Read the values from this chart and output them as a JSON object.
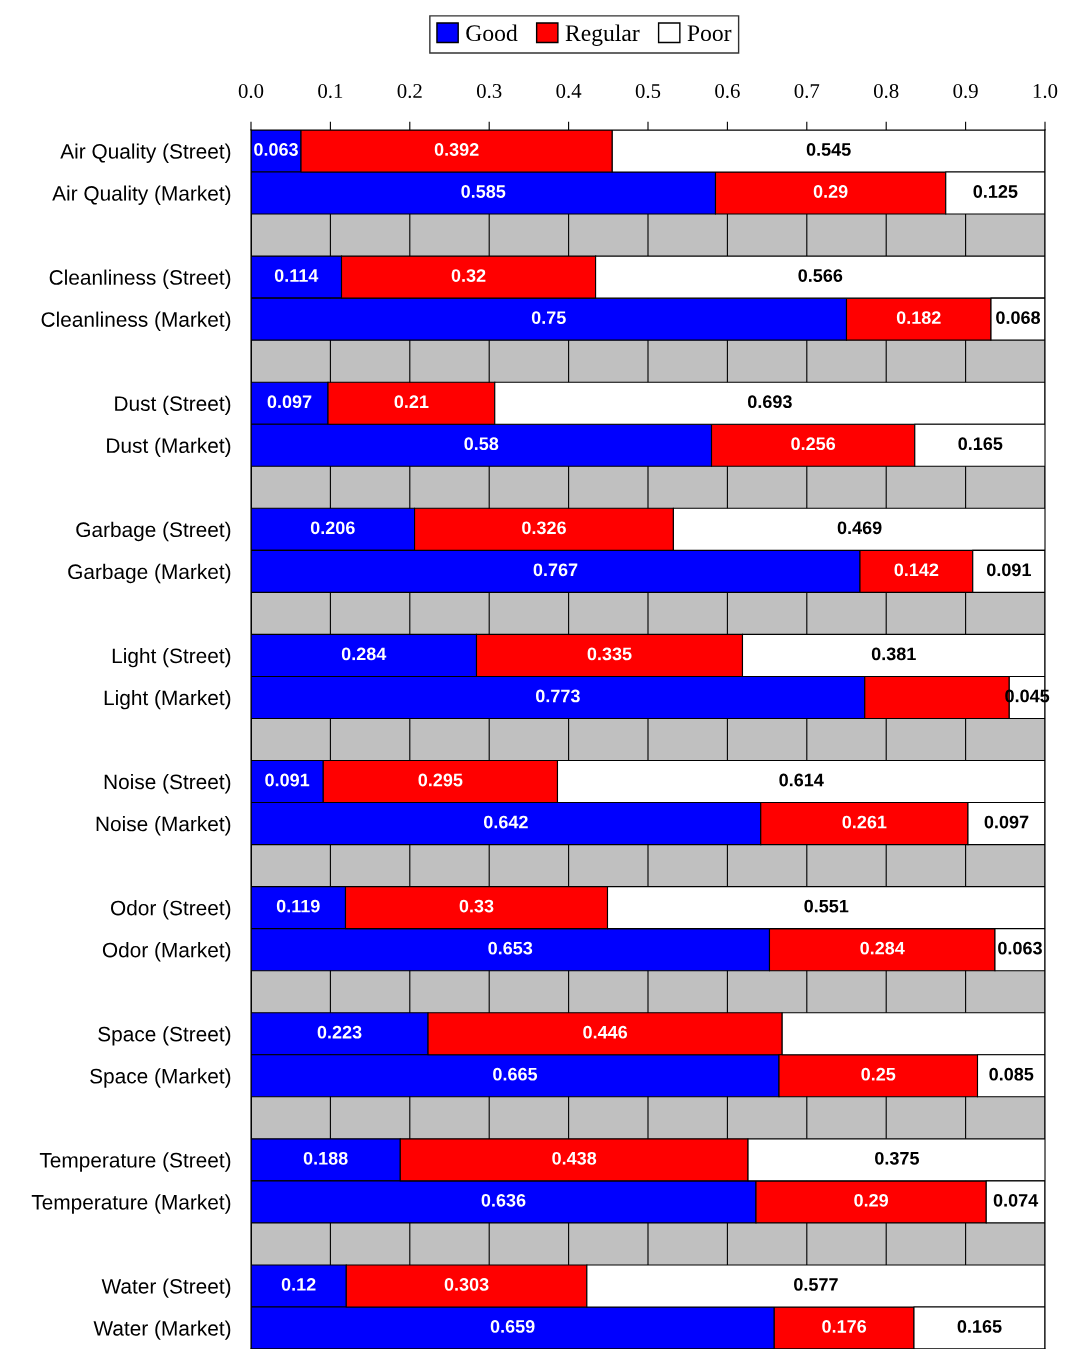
{
  "chart_data": {
    "type": "bar",
    "orientation": "horizontal",
    "stacked": true,
    "legend": "top",
    "grid": "x",
    "categories": [
      "Air Quality (Street)",
      "Air Quality (Market)",
      null,
      "Cleanliness (Street)",
      "Cleanliness (Market)",
      null,
      "Dust (Street)",
      "Dust (Market)",
      null,
      "Garbage (Street)",
      "Garbage (Market)",
      null,
      "Light (Street)",
      "Light (Market)",
      null,
      "Noise (Street)",
      "Noise (Market)",
      null,
      "Odor (Street)",
      "Odor (Market)",
      null,
      "Space (Street)",
      "Space (Market)",
      null,
      "Temperature (Street)",
      "Temperature (Market)",
      null,
      "Water (Street)",
      "Water (Market)"
    ],
    "xlim": [
      0,
      1.0
    ],
    "xticks": [
      {
        "value": 0,
        "label": "0.0"
      },
      {
        "value": 0.1,
        "label": "0.1"
      },
      {
        "value": 0.2,
        "label": "0.2"
      },
      {
        "value": 0.3,
        "label": "0.3"
      },
      {
        "value": 0.4,
        "label": "0.4"
      },
      {
        "value": 0.5,
        "label": "0.5"
      },
      {
        "value": 0.6,
        "label": "0.6"
      },
      {
        "value": 0.7,
        "label": "0.7"
      },
      {
        "value": 0.8,
        "label": "0.8"
      },
      {
        "value": 0.9,
        "label": "0.9"
      },
      {
        "value": 1.0,
        "label": "1.0"
      }
    ],
    "series": [
      {
        "name": "Good",
        "color": "#0000ff",
        "values": [
          0.063,
          0.585,
          null,
          0.114,
          0.75,
          null,
          0.097,
          0.58,
          null,
          0.206,
          0.767,
          null,
          0.284,
          0.773,
          null,
          0.091,
          0.642,
          null,
          0.119,
          0.653,
          null,
          0.223,
          0.665,
          null,
          0.188,
          0.636,
          null,
          0.12,
          0.659
        ],
        "value_labels": [
          "0.063",
          "0.585",
          null,
          "0.114",
          "0.75",
          null,
          "0.097",
          "0.58",
          null,
          "0.206",
          "0.767",
          null,
          "0.284",
          "0.773",
          null,
          "0.091",
          "0.642",
          null,
          "0.119",
          "0.653",
          null,
          "0.223",
          "0.665",
          null,
          "0.188",
          "0.636",
          null,
          "0.12",
          "0.659"
        ]
      },
      {
        "name": "Regular",
        "color": "#ff0000",
        "values": [
          0.392,
          0.29,
          null,
          0.32,
          0.182,
          null,
          0.21,
          0.256,
          null,
          0.326,
          0.142,
          null,
          0.335,
          0.182,
          null,
          0.295,
          0.261,
          null,
          0.33,
          0.284,
          null,
          0.446,
          0.25,
          null,
          0.438,
          0.29,
          null,
          0.303,
          0.176
        ],
        "value_labels": [
          "0.392",
          "0.29",
          null,
          "0.32",
          "0.182",
          null,
          "0.21",
          "0.256",
          null,
          "0.326",
          "0.142",
          null,
          "0.335",
          null,
          null,
          "0.295",
          "0.261",
          null,
          "0.33",
          "0.284",
          null,
          "0.446",
          "0.25",
          null,
          "0.438",
          "0.29",
          null,
          "0.303",
          "0.176"
        ]
      },
      {
        "name": "Poor",
        "color": "#ffffff",
        "values": [
          0.545,
          0.125,
          null,
          0.566,
          0.068,
          null,
          0.693,
          0.165,
          null,
          0.469,
          0.091,
          null,
          0.381,
          0.045,
          null,
          0.614,
          0.097,
          null,
          0.551,
          0.063,
          null,
          0.331,
          0.085,
          null,
          0.375,
          0.074,
          null,
          0.577,
          0.165
        ],
        "value_labels": [
          "0.545",
          "0.125",
          null,
          "0.566",
          "0.068",
          null,
          "0.693",
          "0.165",
          null,
          "0.469",
          "0.091",
          null,
          "0.381",
          "0.045",
          null,
          "0.614",
          "0.097",
          null,
          "0.551",
          "0.063",
          null,
          null,
          "0.085",
          null,
          "0.375",
          "0.074",
          null,
          "0.577",
          "0.165"
        ]
      }
    ]
  }
}
